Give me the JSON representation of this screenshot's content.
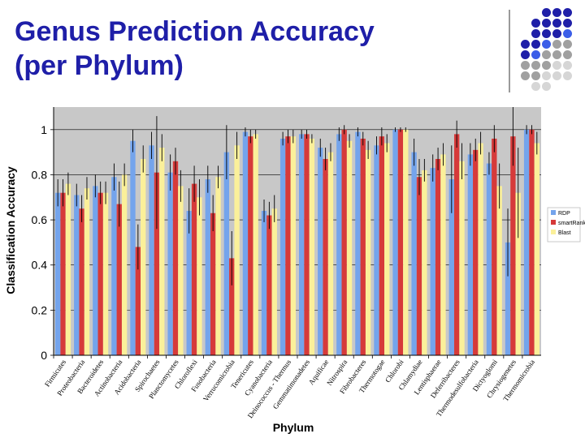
{
  "slide": {
    "title_line1": "Genus Prediction Accuracy",
    "title_line2": "(per Phylum)"
  },
  "decoration": {
    "dot_colors": {
      "dark_blue": "#1f1fa8",
      "blue": "#3c5ee8",
      "gray": "#a0a0a0",
      "light_gray": "#d6d6d6"
    },
    "dot_rows": [
      [
        "none",
        "none",
        "dark_blue",
        "dark_blue",
        "dark_blue"
      ],
      [
        "none",
        "dark_blue",
        "dark_blue",
        "dark_blue",
        "dark_blue"
      ],
      [
        "none",
        "dark_blue",
        "dark_blue",
        "dark_blue",
        "blue"
      ],
      [
        "dark_blue",
        "dark_blue",
        "blue",
        "gray",
        "gray"
      ],
      [
        "dark_blue",
        "blue",
        "gray",
        "gray",
        "gray"
      ],
      [
        "gray",
        "gray",
        "gray",
        "light_gray",
        "light_gray"
      ],
      [
        "gray",
        "gray",
        "light_gray",
        "light_gray",
        "light_gray"
      ],
      [
        "none",
        "light_gray",
        "light_gray",
        "none",
        "none"
      ]
    ]
  },
  "chart_data": {
    "type": "bar",
    "xlabel": "Phylum",
    "ylabel": "Classification Accuracy",
    "ylim": [
      0,
      1.1
    ],
    "yticks": [
      0,
      0.2,
      0.4,
      0.6,
      0.8,
      1
    ],
    "ytick_labels": [
      "0",
      "0.2",
      "0.4",
      "0.6",
      "0.8",
      "1"
    ],
    "grid": true,
    "plot_background": "#c8c8c8",
    "legend_position": "right",
    "categories": [
      "Firmicutes",
      "Proteobacteria",
      "Bacteroidetes",
      "Actinobacteria",
      "Acidobacteria",
      "Spirochaetes",
      "Planctomycetes",
      "Chloroflexi",
      "Fusobacteria",
      "Verrucomicrobia",
      "Tenericutes",
      "Cyanobacteria",
      "Deinococcus - Thermus",
      "Gemmatimonadetes",
      "Aquificae",
      "Nitrospira",
      "Fibrobacteres",
      "Thermotogae",
      "Chlorobi",
      "Chlamydiae",
      "Lentisphaerae",
      "Deferribacteres",
      "Thermodesulfobacteria",
      "Dictyoglomi",
      "Chrysiogenetes",
      "Thermomicrobia"
    ],
    "series": [
      {
        "name": "RDP",
        "color": "#74a4ec",
        "values": [
          0.72,
          0.71,
          0.75,
          0.79,
          0.95,
          0.93,
          0.81,
          0.64,
          0.78,
          0.9,
          0.99,
          0.64,
          0.96,
          0.98,
          0.92,
          0.98,
          0.99,
          0.93,
          1.0,
          0.9,
          0.83,
          0.78,
          0.89,
          0.85,
          0.5,
          1.0
        ],
        "errors": [
          0.06,
          0.05,
          0.05,
          0.06,
          0.05,
          0.06,
          0.08,
          0.1,
          0.06,
          0.12,
          0.02,
          0.05,
          0.03,
          0.02,
          0.04,
          0.03,
          0.02,
          0.04,
          0.01,
          0.06,
          0.06,
          0.15,
          0.05,
          0.05,
          0.15,
          0.02
        ]
      },
      {
        "name": "smartRank",
        "color": "#d63a3a",
        "values": [
          0.72,
          0.65,
          0.72,
          0.67,
          0.48,
          0.81,
          0.86,
          0.76,
          0.63,
          0.43,
          0.97,
          0.62,
          0.97,
          0.98,
          0.87,
          1.0,
          0.96,
          0.97,
          1.0,
          0.79,
          0.87,
          0.98,
          0.91,
          0.96,
          0.97,
          1.0
        ],
        "errors": [
          0.06,
          0.06,
          0.05,
          0.1,
          0.1,
          0.25,
          0.06,
          0.08,
          0.08,
          0.12,
          0.03,
          0.06,
          0.03,
          0.02,
          0.05,
          0.02,
          0.03,
          0.04,
          0.01,
          0.08,
          0.05,
          0.06,
          0.05,
          0.06,
          0.13,
          0.02
        ]
      },
      {
        "name": "Blast",
        "color": "#fbf09a",
        "values": [
          0.76,
          0.74,
          0.72,
          0.8,
          0.87,
          0.92,
          0.75,
          0.7,
          0.79,
          0.93,
          0.98,
          0.65,
          0.97,
          0.96,
          0.9,
          0.95,
          0.91,
          0.94,
          1.0,
          0.82,
          0.89,
          0.86,
          0.94,
          0.75,
          0.72,
          0.94
        ],
        "errors": [
          0.05,
          0.05,
          0.05,
          0.05,
          0.06,
          0.06,
          0.07,
          0.08,
          0.05,
          0.06,
          0.02,
          0.06,
          0.03,
          0.02,
          0.04,
          0.03,
          0.04,
          0.04,
          0.01,
          0.05,
          0.05,
          0.08,
          0.05,
          0.1,
          0.2,
          0.05
        ]
      }
    ]
  }
}
